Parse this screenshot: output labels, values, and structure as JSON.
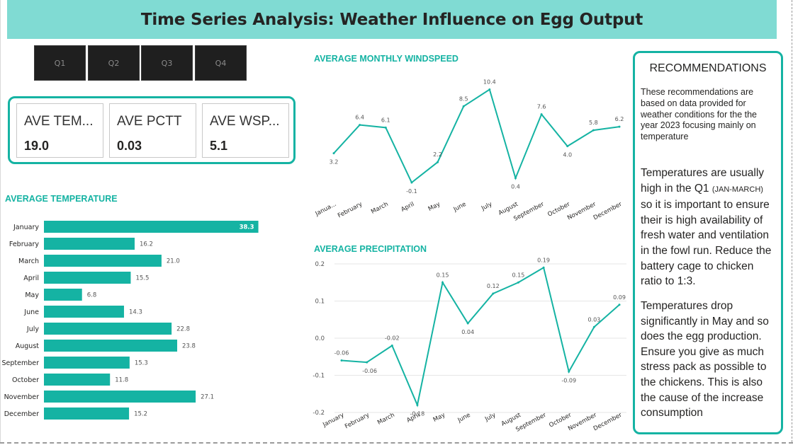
{
  "title": "Time Series Analysis: Weather Influence on Egg Output",
  "quarters": [
    "Q1",
    "Q2",
    "Q3",
    "Q4"
  ],
  "kpis": [
    {
      "label": "AVE TEM...",
      "value": "19.0"
    },
    {
      "label": "AVE PCTT",
      "value": "0.03"
    },
    {
      "label": "AVE WSP...",
      "value": "5.1"
    }
  ],
  "colors": {
    "accent": "#15b3a3",
    "title_bg": "#80dbd3",
    "slicer_bg": "#1f1f1f"
  },
  "recommendations": {
    "title": "RECOMMENDATIONS",
    "intro": "These recommendations are based on data provided for weather conditions for the the year 2023 focusing mainly on temperature",
    "p1_a": "Temperatures are usually high in the Q1 ",
    "p1_small": "(JAN-MARCH)",
    "p1_b": " so it is important to ensure their is high availability of fresh water and ventilation in the fowl run. Reduce the battery cage to chicken ratio to 1:3.",
    "p2": "Temperatures drop significantly in May and so does the egg production. Ensure you give as much stress pack as possible to the chickens. This is also the cause of the increase consumption"
  },
  "chart_data": [
    {
      "type": "bar",
      "title": "AVERAGE TEMPERATURE",
      "orientation": "horizontal",
      "categories": [
        "January",
        "February",
        "March",
        "April",
        "May",
        "June",
        "July",
        "August",
        "September",
        "October",
        "November",
        "December"
      ],
      "values": [
        38.3,
        16.2,
        21.0,
        15.5,
        6.8,
        14.3,
        22.8,
        23.8,
        15.3,
        11.8,
        27.1,
        15.2
      ],
      "labels": [
        "38.3",
        "16.2",
        "21.0",
        "15.5",
        "6.8",
        "14.3",
        "22.8",
        "23.8",
        "15.3",
        "11.8",
        "27.1",
        "15.2"
      ],
      "xlim": [
        0,
        40
      ],
      "color": "#15b3a3"
    },
    {
      "type": "line",
      "title": "AVERAGE MONTHLY WINDSPEED",
      "x": [
        "Janua...",
        "February",
        "March",
        "April",
        "May",
        "June",
        "July",
        "August",
        "September",
        "October",
        "November",
        "December"
      ],
      "values": [
        3.2,
        6.4,
        6.1,
        -0.1,
        2.2,
        8.5,
        10.4,
        0.4,
        7.6,
        4.0,
        5.8,
        6.2
      ],
      "labels": [
        "3.2",
        "6.4",
        "6.1",
        "-0.1",
        "2.2",
        "8.5",
        "10.4",
        "0.4",
        "7.6",
        "4.0",
        "5.8",
        "6.2"
      ],
      "ylim": [
        -0.5,
        11
      ],
      "grid": false,
      "color": "#15b3a3"
    },
    {
      "type": "line",
      "title": "AVERAGE PRECIPITATION",
      "x": [
        "January",
        "February",
        "March",
        "April",
        "May",
        "June",
        "July",
        "August",
        "September",
        "October",
        "November",
        "December"
      ],
      "values": [
        -0.06,
        -0.065,
        -0.02,
        -0.18,
        0.15,
        0.04,
        0.12,
        0.15,
        0.19,
        -0.09,
        0.03,
        0.09
      ],
      "labels": [
        "-0.06",
        "-0.06",
        "-0.02",
        "-0.18",
        "0.15",
        "0.04",
        "0.12",
        "0.15",
        "0.19",
        "-0.09",
        "0.03",
        "0.09"
      ],
      "yticks": [
        "0.2",
        "0.1",
        "0.0",
        "-0.1",
        "-0.2"
      ],
      "ylim": [
        -0.2,
        0.2
      ],
      "grid": true,
      "color": "#15b3a3"
    }
  ]
}
